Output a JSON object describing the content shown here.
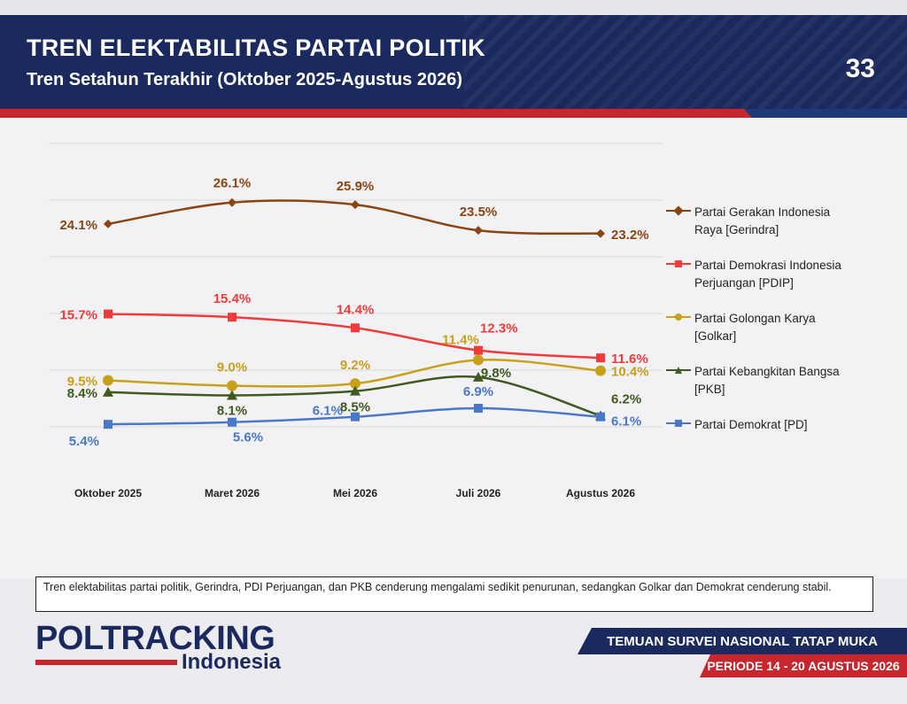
{
  "header": {
    "title": "TREN ELEKTABILITAS PARTAI POLITIK",
    "subtitle": "Tren Setahun Terakhir (Oktober 2025-Agustus 2026)",
    "page_number": "33"
  },
  "chart_data": {
    "type": "line",
    "categories": [
      "Oktober 2025",
      "Maret 2026",
      "Mei 2026",
      "Juli 2026",
      "Agustus 2026"
    ],
    "series": [
      {
        "name": "Partai Gerakan Indonesia Raya [Gerindra]",
        "legend_lines": [
          "Partai Gerakan Indonesia",
          "Raya [Gerindra]"
        ],
        "color": "#8b4513",
        "marker": "diamond",
        "values": [
          24.1,
          26.1,
          25.9,
          23.5,
          23.2
        ],
        "labels": [
          "24.1%",
          "26.1%",
          "25.9%",
          "23.5%",
          "23.2%"
        ]
      },
      {
        "name": "Partai Demokrasi Indonesia Perjuangan [PDIP]",
        "legend_lines": [
          "Partai Demokrasi Indonesia",
          "Perjuangan [PDIP]"
        ],
        "color": "#f23a3a",
        "marker": "square",
        "values": [
          15.7,
          15.4,
          14.4,
          12.3,
          11.6
        ],
        "labels": [
          "15.7%",
          "15.4%",
          "14.4%",
          "12.3%",
          "11.6%"
        ]
      },
      {
        "name": "Partai Golongan Karya [Golkar]",
        "legend_lines": [
          "Partai Golongan Karya",
          "[Golkar]"
        ],
        "color": "#c9a019",
        "marker": "circle",
        "values": [
          9.5,
          9.0,
          9.2,
          11.4,
          10.4
        ],
        "labels": [
          "9.5%",
          "9.0%",
          "9.2%",
          "11.4%",
          "10.4%"
        ]
      },
      {
        "name": "Partai Kebangkitan Bangsa [PKB]",
        "legend_lines": [
          "Partai Kebangkitan Bangsa",
          "[PKB]"
        ],
        "color": "#3e5a1e",
        "marker": "triangle",
        "values": [
          8.4,
          8.1,
          8.5,
          9.8,
          6.2
        ],
        "labels": [
          "8.4%",
          "8.1%",
          "8.5%",
          "9.8%",
          "6.2%"
        ]
      },
      {
        "name": "Partai Demokrat [PD]",
        "legend_lines": [
          "Partai Demokrat [PD]",
          ""
        ],
        "color": "#4a78c8",
        "marker": "square",
        "values": [
          5.4,
          5.6,
          6.1,
          6.9,
          6.1
        ],
        "labels": [
          "5.4%",
          "5.6%",
          "6.1%",
          "6.9%",
          "6.1%"
        ]
      }
    ],
    "ylim": [
      0,
      30
    ],
    "grid": true,
    "legend_position": "right"
  },
  "note": "Tren elektabilitas partai politik, Gerindra, PDI Perjuangan, dan PKB cenderung mengalami sedikit penurunan, sedangkan Golkar dan Demokrat cenderung stabil.",
  "logo": {
    "main": "POLTRACKING",
    "sub": "Indonesia"
  },
  "footer": {
    "survey": "TEMUAN SURVEI NASIONAL TATAP MUKA",
    "period": "PERIODE 14 - 20 AGUSTUS 2026"
  }
}
